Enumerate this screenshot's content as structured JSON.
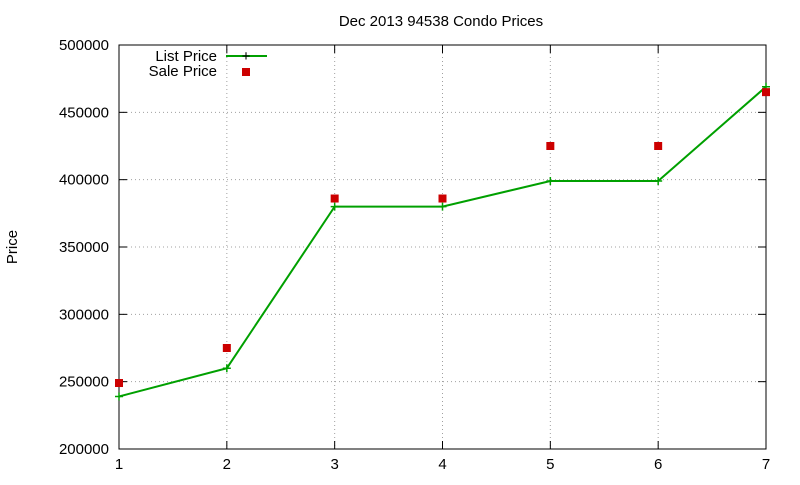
{
  "chart_data": {
    "type": "line",
    "title": "Dec 2013 94538 Condo Prices",
    "xlabel": "",
    "ylabel": "Price",
    "x": [
      1,
      2,
      3,
      4,
      5,
      6,
      7
    ],
    "xlim": [
      1,
      7
    ],
    "ylim": [
      200000,
      500000
    ],
    "x_ticks": [
      "1",
      "2",
      "3",
      "4",
      "5",
      "6",
      "7"
    ],
    "y_ticks": [
      "200000",
      "250000",
      "300000",
      "350000",
      "400000",
      "450000",
      "500000"
    ],
    "grid": true,
    "legend_position": "top-left",
    "series": [
      {
        "name": "List Price",
        "style": "line-with-plus-markers",
        "color": "#00a000",
        "values": [
          239000,
          260000,
          380000,
          380000,
          399000,
          399000,
          469000
        ]
      },
      {
        "name": "Sale Price",
        "style": "square-markers",
        "color": "#cc0000",
        "values": [
          249000,
          275000,
          386000,
          386000,
          425000,
          425000,
          465000
        ]
      }
    ]
  }
}
